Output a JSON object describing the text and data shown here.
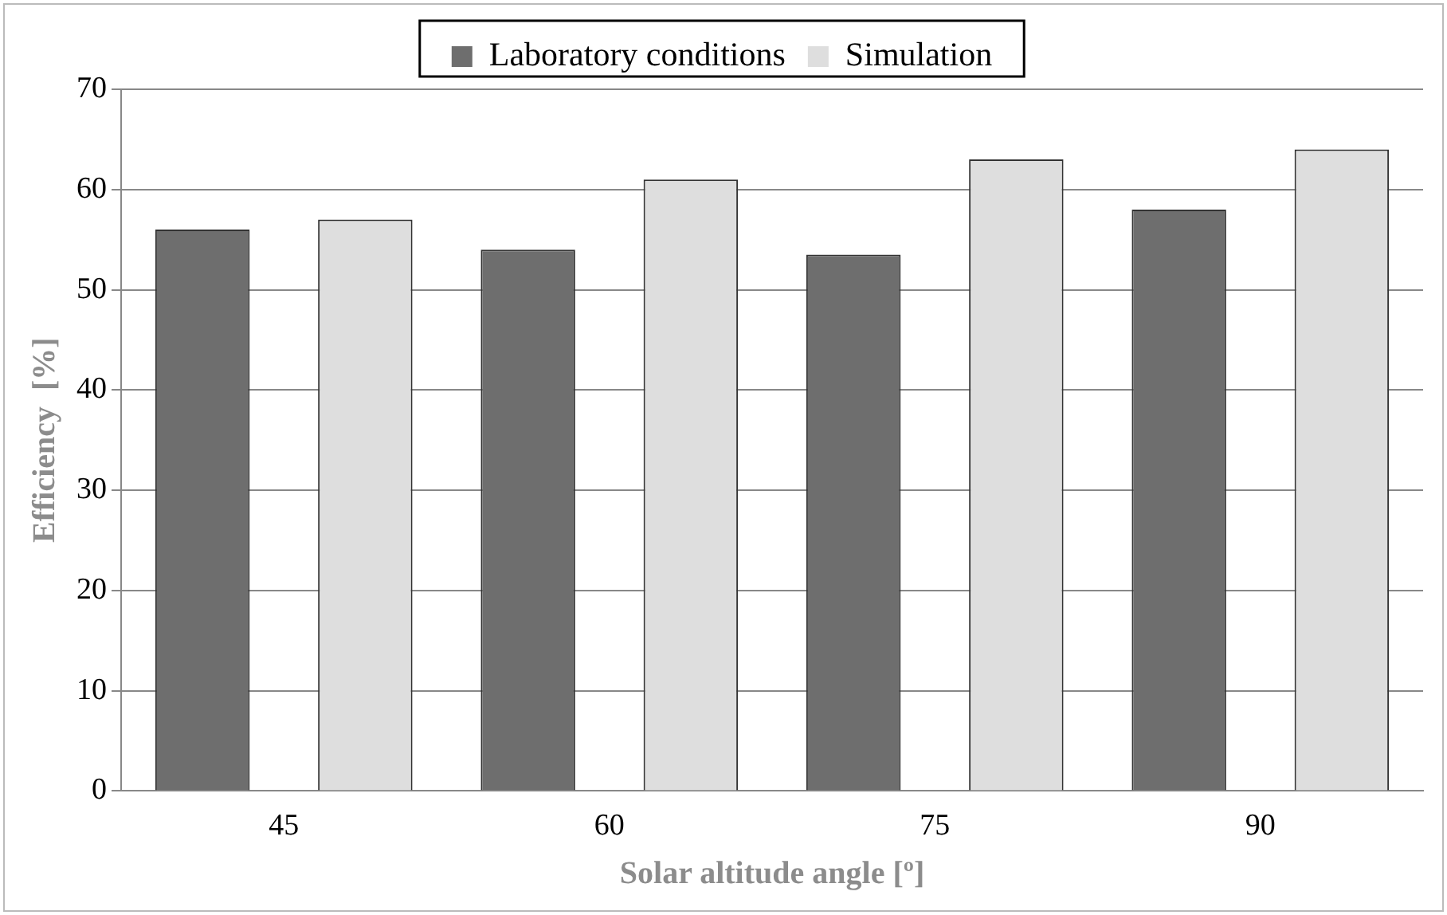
{
  "chart_data": {
    "type": "bar",
    "xlabel": "Solar altitude angle [º]",
    "ylabel": "Efficiency  [%]",
    "categories": [
      "45",
      "60",
      "75",
      "90"
    ],
    "series": [
      {
        "name": "Laboratory conditions",
        "color": "#6e6e6e",
        "values": [
          56,
          54,
          53.5,
          58
        ]
      },
      {
        "name": "Simulation",
        "color": "#dedede",
        "values": [
          57,
          61,
          63,
          64
        ]
      }
    ],
    "ylim": [
      0,
      70
    ],
    "yticks": [
      0,
      10,
      20,
      30,
      40,
      50,
      60,
      70
    ],
    "grid": "y",
    "legend": "top"
  }
}
